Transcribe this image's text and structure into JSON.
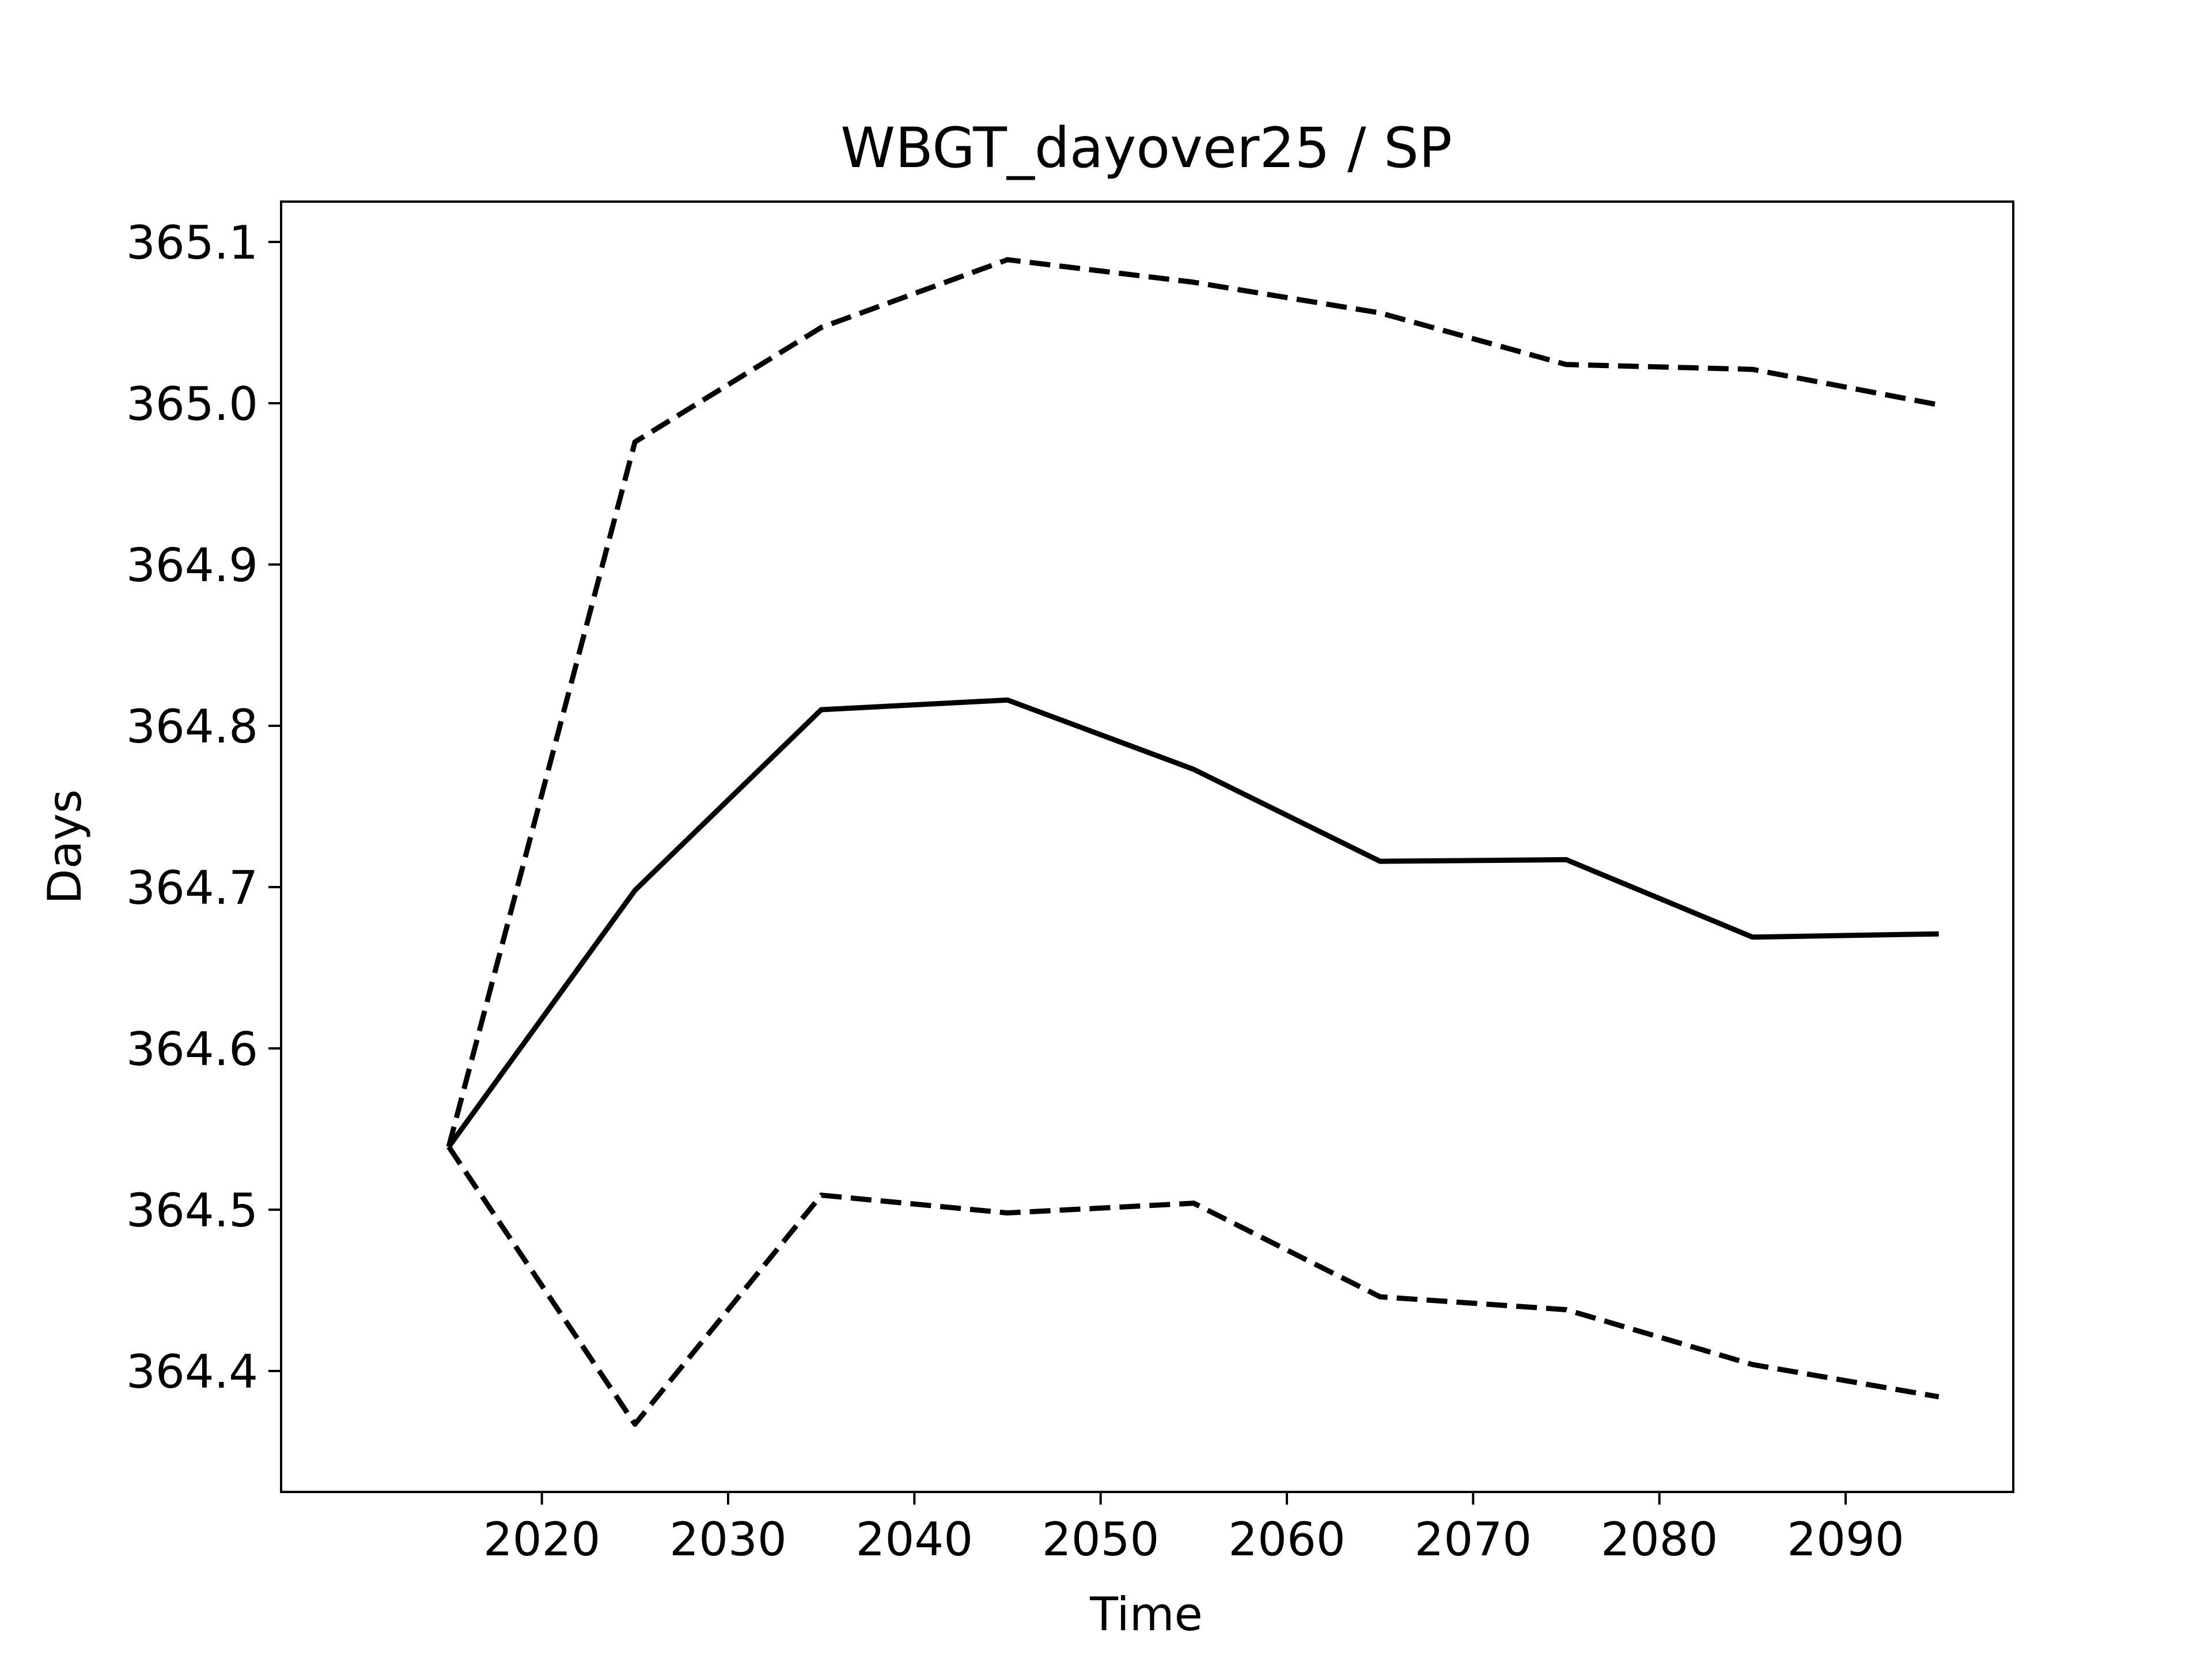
{
  "chart_data": {
    "type": "line",
    "title": "WBGT_dayover25 / SP",
    "xlabel": "Time",
    "ylabel": "Days",
    "x": [
      2015,
      2025,
      2035,
      2045,
      2055,
      2065,
      2075,
      2085,
      2095
    ],
    "series": [
      {
        "style": "solid",
        "values": [
          364.539,
          364.698,
          364.81,
          364.816,
          364.773,
          364.716,
          364.717,
          364.669,
          364.671
        ]
      },
      {
        "style": "dashed",
        "values": [
          364.539,
          364.976,
          365.047,
          365.089,
          365.075,
          365.056,
          365.024,
          365.021,
          364.999
        ]
      },
      {
        "style": "dashed",
        "values": [
          364.539,
          364.367,
          364.509,
          364.498,
          364.504,
          364.446,
          364.438,
          364.404,
          364.384
        ]
      }
    ],
    "xlim": [
      2006,
      2099
    ],
    "ylim": [
      364.325,
      365.125
    ],
    "xticks": [
      2020,
      2030,
      2040,
      2050,
      2060,
      2070,
      2080,
      2090
    ],
    "yticks": [
      364.4,
      364.5,
      364.6,
      364.7,
      364.8,
      364.9,
      365.0,
      365.1
    ],
    "ytick_labels": [
      "364.4",
      "364.5",
      "364.6",
      "364.7",
      "364.8",
      "364.9",
      "365.0",
      "365.1"
    ],
    "line_color": "#000000",
    "grid": false,
    "legend": "none"
  }
}
